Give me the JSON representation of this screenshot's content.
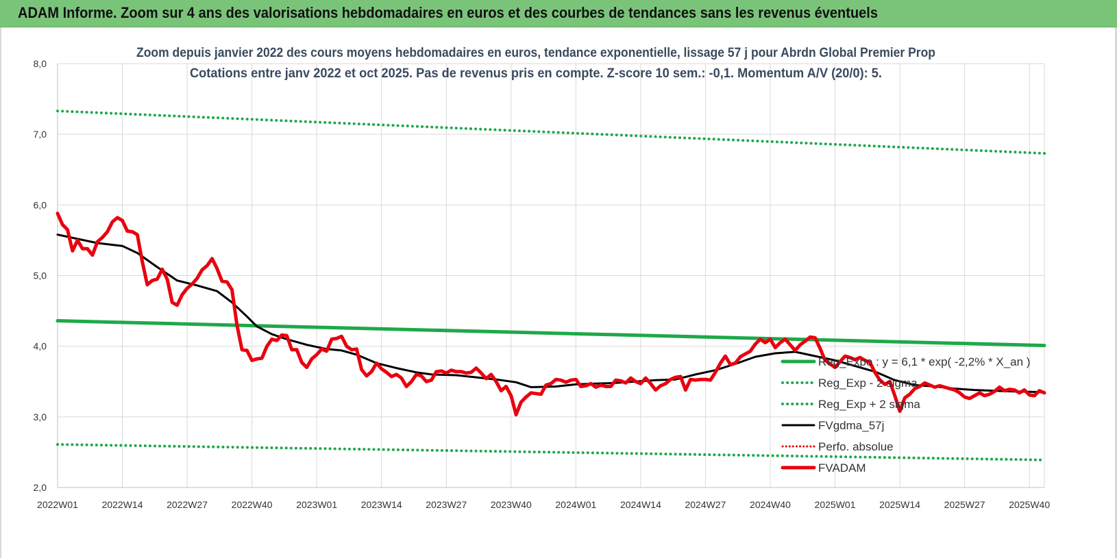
{
  "banner": {
    "title": "ADAM Informe. Zoom sur 4 ans des valorisations hebdomadaires en euros et des courbes de tendances sans les revenus éventuels"
  },
  "colors": {
    "banner": "#7ac47a",
    "reg_exp": "#1fa84a",
    "sigma": "#1fa84a",
    "fvgdma": "#000000",
    "perfo": "#e00000",
    "fvadam": "#e8000f"
  },
  "chart_data": {
    "type": "line",
    "title_lines": [
      "Zoom depuis janvier 2022 des cours moyens hebdomadaires en euros, tendance exponentielle, lissage 57 j pour Abrdn Global Premier Prop",
      "Cotations entre janv 2022 et oct 2025. Pas de revenus pris en compte. Z-score 10 sem.: -0,1. Momentum A/V (20/0): 5."
    ],
    "x_tick_labels": [
      "2022W01",
      "2022W14",
      "2022W27",
      "2022W40",
      "2023W01",
      "2023W14",
      "2023W27",
      "2023W40",
      "2024W01",
      "2024W14",
      "2024W27",
      "2024W40",
      "2025W01",
      "2025W14",
      "2025W27",
      "2025W40"
    ],
    "x_tick_weeks": [
      0,
      13,
      26,
      39,
      52,
      65,
      78,
      91,
      104,
      117,
      130,
      143,
      156,
      169,
      182,
      195
    ],
    "x_range": [
      0,
      198
    ],
    "y_ticks": [
      "2,0",
      "3,0",
      "4,0",
      "5,0",
      "6,0",
      "7,0",
      "8,0"
    ],
    "ylim": [
      2,
      8
    ],
    "grid": "horizontal and vertical",
    "legend_position": "bottom-right",
    "series": [
      {
        "name": "Reg_Expo : y = 6,1 * exp( -2,2% * X_an )",
        "style": "solid",
        "points": [
          [
            0,
            4.36
          ],
          [
            198,
            4.01
          ]
        ]
      },
      {
        "name": "Reg_Exp - 2 sigma",
        "style": "dotted",
        "points": [
          [
            0,
            2.61
          ],
          [
            198,
            2.39
          ]
        ]
      },
      {
        "name": "Reg_Exp + 2 sigma",
        "style": "dotted",
        "points": [
          [
            0,
            7.33
          ],
          [
            198,
            6.73
          ]
        ]
      },
      {
        "name": "FVgdma_57j",
        "style": "solid",
        "points": [
          [
            0,
            5.58
          ],
          [
            4,
            5.52
          ],
          [
            8,
            5.46
          ],
          [
            13,
            5.42
          ],
          [
            16,
            5.32
          ],
          [
            20,
            5.12
          ],
          [
            24,
            4.93
          ],
          [
            28,
            4.86
          ],
          [
            32,
            4.78
          ],
          [
            35,
            4.62
          ],
          [
            38,
            4.42
          ],
          [
            40,
            4.28
          ],
          [
            43,
            4.17
          ],
          [
            46,
            4.1
          ],
          [
            50,
            4.02
          ],
          [
            54,
            3.96
          ],
          [
            57,
            3.94
          ],
          [
            60,
            3.88
          ],
          [
            64,
            3.76
          ],
          [
            68,
            3.69
          ],
          [
            72,
            3.63
          ],
          [
            75,
            3.6
          ],
          [
            80,
            3.59
          ],
          [
            84,
            3.56
          ],
          [
            88,
            3.53
          ],
          [
            92,
            3.49
          ],
          [
            95,
            3.42
          ],
          [
            100,
            3.43
          ],
          [
            104,
            3.46
          ],
          [
            108,
            3.47
          ],
          [
            112,
            3.48
          ],
          [
            116,
            3.5
          ],
          [
            120,
            3.52
          ],
          [
            124,
            3.53
          ],
          [
            128,
            3.6
          ],
          [
            132,
            3.66
          ],
          [
            136,
            3.75
          ],
          [
            140,
            3.85
          ],
          [
            144,
            3.9
          ],
          [
            148,
            3.92
          ],
          [
            152,
            3.86
          ],
          [
            156,
            3.8
          ],
          [
            160,
            3.72
          ],
          [
            164,
            3.64
          ],
          [
            168,
            3.52
          ],
          [
            172,
            3.45
          ],
          [
            176,
            3.43
          ],
          [
            180,
            3.4
          ],
          [
            184,
            3.38
          ],
          [
            188,
            3.37
          ],
          [
            192,
            3.36
          ],
          [
            198,
            3.35
          ]
        ]
      },
      {
        "name": "Perfo. absolue",
        "style": "dotted",
        "points": []
      },
      {
        "name": "FVADAM",
        "style": "solid",
        "points": [
          [
            0,
            5.88
          ],
          [
            1,
            5.72
          ],
          [
            2,
            5.65
          ],
          [
            3,
            5.35
          ],
          [
            4,
            5.5
          ],
          [
            5,
            5.38
          ],
          [
            6,
            5.38
          ],
          [
            7,
            5.29
          ],
          [
            8,
            5.48
          ],
          [
            9,
            5.54
          ],
          [
            10,
            5.62
          ],
          [
            11,
            5.76
          ],
          [
            12,
            5.82
          ],
          [
            13,
            5.78
          ],
          [
            14,
            5.63
          ],
          [
            15,
            5.62
          ],
          [
            16,
            5.58
          ],
          [
            17,
            5.2
          ],
          [
            18,
            4.87
          ],
          [
            19,
            4.93
          ],
          [
            20,
            4.95
          ],
          [
            21,
            5.09
          ],
          [
            22,
            4.95
          ],
          [
            23,
            4.62
          ],
          [
            24,
            4.58
          ],
          [
            25,
            4.73
          ],
          [
            26,
            4.82
          ],
          [
            27,
            4.88
          ],
          [
            28,
            4.96
          ],
          [
            29,
            5.08
          ],
          [
            30,
            5.14
          ],
          [
            31,
            5.24
          ],
          [
            32,
            5.1
          ],
          [
            33,
            4.92
          ],
          [
            34,
            4.91
          ],
          [
            35,
            4.8
          ],
          [
            36,
            4.3
          ],
          [
            37,
            3.95
          ],
          [
            38,
            3.94
          ],
          [
            39,
            3.8
          ],
          [
            40,
            3.82
          ],
          [
            41,
            3.83
          ],
          [
            42,
            4.0
          ],
          [
            43,
            4.1
          ],
          [
            44,
            4.08
          ],
          [
            45,
            4.16
          ],
          [
            46,
            4.15
          ],
          [
            47,
            3.95
          ],
          [
            48,
            3.95
          ],
          [
            49,
            3.77
          ],
          [
            50,
            3.7
          ],
          [
            51,
            3.82
          ],
          [
            52,
            3.88
          ],
          [
            53,
            3.96
          ],
          [
            54,
            3.93
          ],
          [
            55,
            4.1
          ],
          [
            56,
            4.11
          ],
          [
            57,
            4.14
          ],
          [
            58,
            4.0
          ],
          [
            59,
            3.95
          ],
          [
            60,
            3.96
          ],
          [
            61,
            3.67
          ],
          [
            62,
            3.58
          ],
          [
            63,
            3.64
          ],
          [
            64,
            3.76
          ],
          [
            65,
            3.68
          ],
          [
            66,
            3.63
          ],
          [
            67,
            3.57
          ],
          [
            68,
            3.6
          ],
          [
            69,
            3.55
          ],
          [
            70,
            3.43
          ],
          [
            71,
            3.5
          ],
          [
            72,
            3.6
          ],
          [
            73,
            3.58
          ],
          [
            74,
            3.5
          ],
          [
            75,
            3.52
          ],
          [
            76,
            3.64
          ],
          [
            77,
            3.65
          ],
          [
            78,
            3.62
          ],
          [
            79,
            3.66
          ],
          [
            80,
            3.64
          ],
          [
            81,
            3.64
          ],
          [
            82,
            3.62
          ],
          [
            83,
            3.63
          ],
          [
            84,
            3.69
          ],
          [
            85,
            3.62
          ],
          [
            86,
            3.54
          ],
          [
            87,
            3.6
          ],
          [
            88,
            3.5
          ],
          [
            89,
            3.37
          ],
          [
            90,
            3.43
          ],
          [
            91,
            3.3
          ],
          [
            92,
            3.03
          ],
          [
            93,
            3.21
          ],
          [
            94,
            3.28
          ],
          [
            95,
            3.34
          ],
          [
            96,
            3.33
          ],
          [
            97,
            3.32
          ],
          [
            98,
            3.45
          ],
          [
            99,
            3.47
          ],
          [
            100,
            3.53
          ],
          [
            101,
            3.52
          ],
          [
            102,
            3.49
          ],
          [
            103,
            3.52
          ],
          [
            104,
            3.53
          ],
          [
            105,
            3.43
          ],
          [
            106,
            3.44
          ],
          [
            107,
            3.47
          ],
          [
            108,
            3.42
          ],
          [
            109,
            3.45
          ],
          [
            110,
            3.43
          ],
          [
            111,
            3.43
          ],
          [
            112,
            3.52
          ],
          [
            113,
            3.51
          ],
          [
            114,
            3.48
          ],
          [
            115,
            3.55
          ],
          [
            116,
            3.5
          ],
          [
            117,
            3.47
          ],
          [
            118,
            3.55
          ],
          [
            119,
            3.47
          ],
          [
            120,
            3.38
          ],
          [
            121,
            3.44
          ],
          [
            122,
            3.47
          ],
          [
            123,
            3.53
          ],
          [
            124,
            3.56
          ],
          [
            125,
            3.57
          ],
          [
            126,
            3.38
          ],
          [
            127,
            3.53
          ],
          [
            128,
            3.52
          ],
          [
            129,
            3.53
          ],
          [
            130,
            3.53
          ],
          [
            131,
            3.52
          ],
          [
            132,
            3.63
          ],
          [
            133,
            3.76
          ],
          [
            134,
            3.86
          ],
          [
            135,
            3.74
          ],
          [
            136,
            3.76
          ],
          [
            137,
            3.85
          ],
          [
            138,
            3.89
          ],
          [
            139,
            3.93
          ],
          [
            140,
            4.03
          ],
          [
            141,
            4.1
          ],
          [
            142,
            4.05
          ],
          [
            143,
            4.1
          ],
          [
            144,
            3.98
          ],
          [
            145,
            4.05
          ],
          [
            146,
            4.1
          ],
          [
            147,
            4.02
          ],
          [
            148,
            3.94
          ],
          [
            149,
            4.02
          ],
          [
            150,
            4.07
          ],
          [
            151,
            4.13
          ],
          [
            152,
            4.12
          ],
          [
            153,
            3.97
          ],
          [
            154,
            3.8
          ],
          [
            155,
            3.75
          ],
          [
            156,
            3.7
          ],
          [
            157,
            3.78
          ],
          [
            158,
            3.86
          ],
          [
            159,
            3.84
          ],
          [
            160,
            3.81
          ],
          [
            161,
            3.84
          ],
          [
            162,
            3.8
          ],
          [
            163,
            3.77
          ],
          [
            164,
            3.63
          ],
          [
            165,
            3.52
          ],
          [
            166,
            3.46
          ],
          [
            167,
            3.5
          ],
          [
            168,
            3.3
          ],
          [
            169,
            3.08
          ],
          [
            170,
            3.27
          ],
          [
            171,
            3.32
          ],
          [
            172,
            3.4
          ],
          [
            173,
            3.43
          ],
          [
            174,
            3.48
          ],
          [
            175,
            3.45
          ],
          [
            176,
            3.42
          ],
          [
            177,
            3.44
          ],
          [
            178,
            3.42
          ],
          [
            179,
            3.4
          ],
          [
            180,
            3.38
          ],
          [
            181,
            3.34
          ],
          [
            182,
            3.28
          ],
          [
            183,
            3.26
          ],
          [
            184,
            3.3
          ],
          [
            185,
            3.34
          ],
          [
            186,
            3.3
          ],
          [
            187,
            3.32
          ],
          [
            188,
            3.36
          ],
          [
            189,
            3.42
          ],
          [
            190,
            3.37
          ],
          [
            191,
            3.39
          ],
          [
            192,
            3.38
          ],
          [
            193,
            3.34
          ],
          [
            194,
            3.38
          ],
          [
            195,
            3.31
          ],
          [
            196,
            3.3
          ],
          [
            197,
            3.37
          ],
          [
            198,
            3.34
          ]
        ]
      }
    ]
  }
}
